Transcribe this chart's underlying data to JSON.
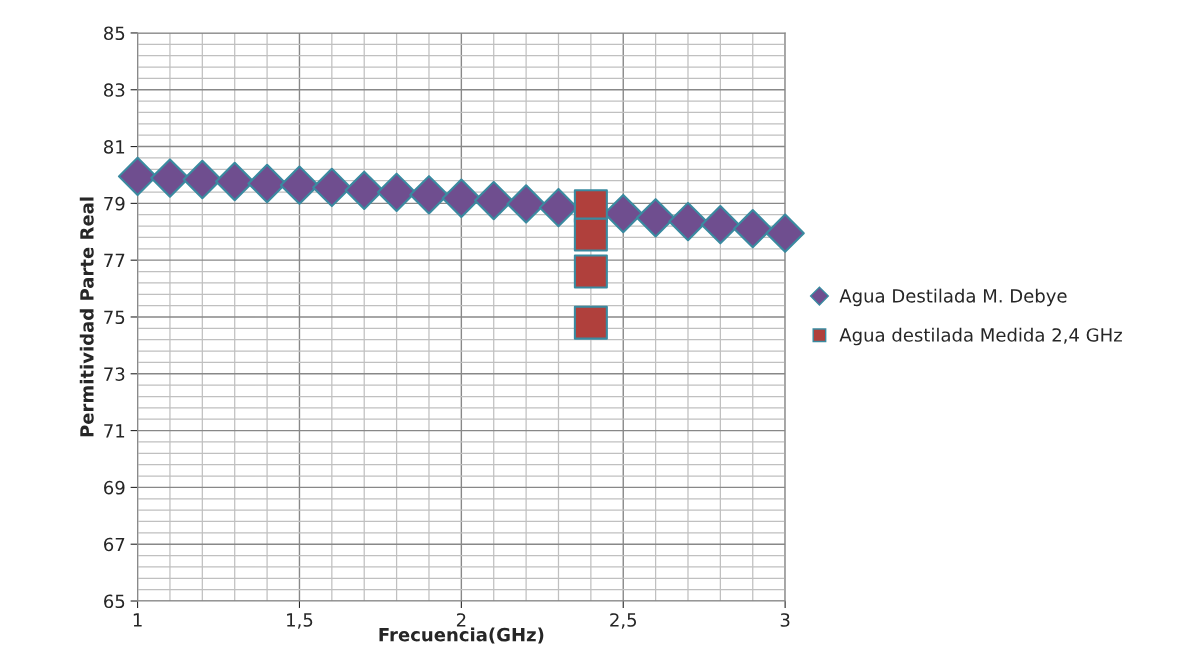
{
  "chart_data": {
    "type": "scatter",
    "xlabel": "Frecuencia(GHz)",
    "ylabel": "Permitividad Parte Real",
    "xlim": [
      1,
      3
    ],
    "xticks": [
      1,
      {
        "value": 1.5,
        "label": "1,5"
      },
      2,
      {
        "value": 2.5,
        "label": "2,5"
      },
      3
    ],
    "ylim": [
      65,
      85
    ],
    "yticks": [
      65,
      67,
      69,
      71,
      73,
      75,
      77,
      79,
      81,
      83,
      85
    ],
    "grid": true,
    "legend": "right",
    "series": [
      {
        "name": "Agua Destilada M. Debye",
        "color": "#6f4e8f",
        "marker": "diamond",
        "x": [
          1,
          1.1,
          1.2,
          1.3,
          1.4,
          1.5,
          1.6,
          1.7,
          1.8,
          1.9,
          2,
          2.1,
          2.2,
          2.3,
          2.4,
          2.5,
          2.6,
          2.7,
          2.8,
          2.9,
          3
        ],
        "values": [
          79.95,
          79.89,
          79.84,
          79.77,
          79.7,
          79.64,
          79.56,
          79.46,
          79.39,
          79.3,
          79.18,
          79.1,
          78.98,
          78.85,
          null,
          78.64,
          78.49,
          78.36,
          78.25,
          78.11,
          77.95
        ]
      },
      {
        "name": "Agua destilada Medida 2,4 GHz",
        "color": "#b0403c",
        "marker": "square",
        "x": [
          2.4,
          2.4,
          2.4,
          2.4
        ],
        "values": [
          78.9,
          77.9,
          76.6,
          74.8
        ]
      }
    ]
  }
}
